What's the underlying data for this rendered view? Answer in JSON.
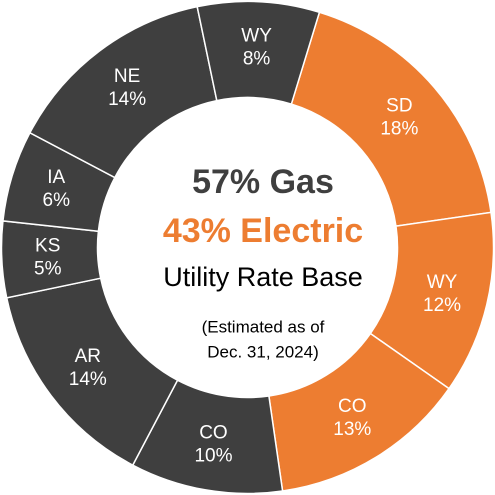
{
  "chart_data": {
    "type": "donut",
    "categories": [
      "SD",
      "WY",
      "CO",
      "CO",
      "AR",
      "KS",
      "IA",
      "NE",
      "WY"
    ],
    "values": [
      18,
      12,
      13,
      10,
      14,
      5,
      6,
      14,
      8
    ],
    "value_labels": [
      "18%",
      "12%",
      "13%",
      "10%",
      "14%",
      "5%",
      "6%",
      "14%",
      "8%"
    ],
    "colors": [
      "#ed7d31",
      "#ed7d31",
      "#ed7d31",
      "#3f3f3f",
      "#3f3f3f",
      "#3f3f3f",
      "#3f3f3f",
      "#3f3f3f",
      "#3f3f3f"
    ],
    "annotations": [
      "57% Gas",
      "43% Electric",
      "Utility Rate Base",
      "(Estimated as of",
      "Dec. 31, 2024)"
    ]
  }
}
